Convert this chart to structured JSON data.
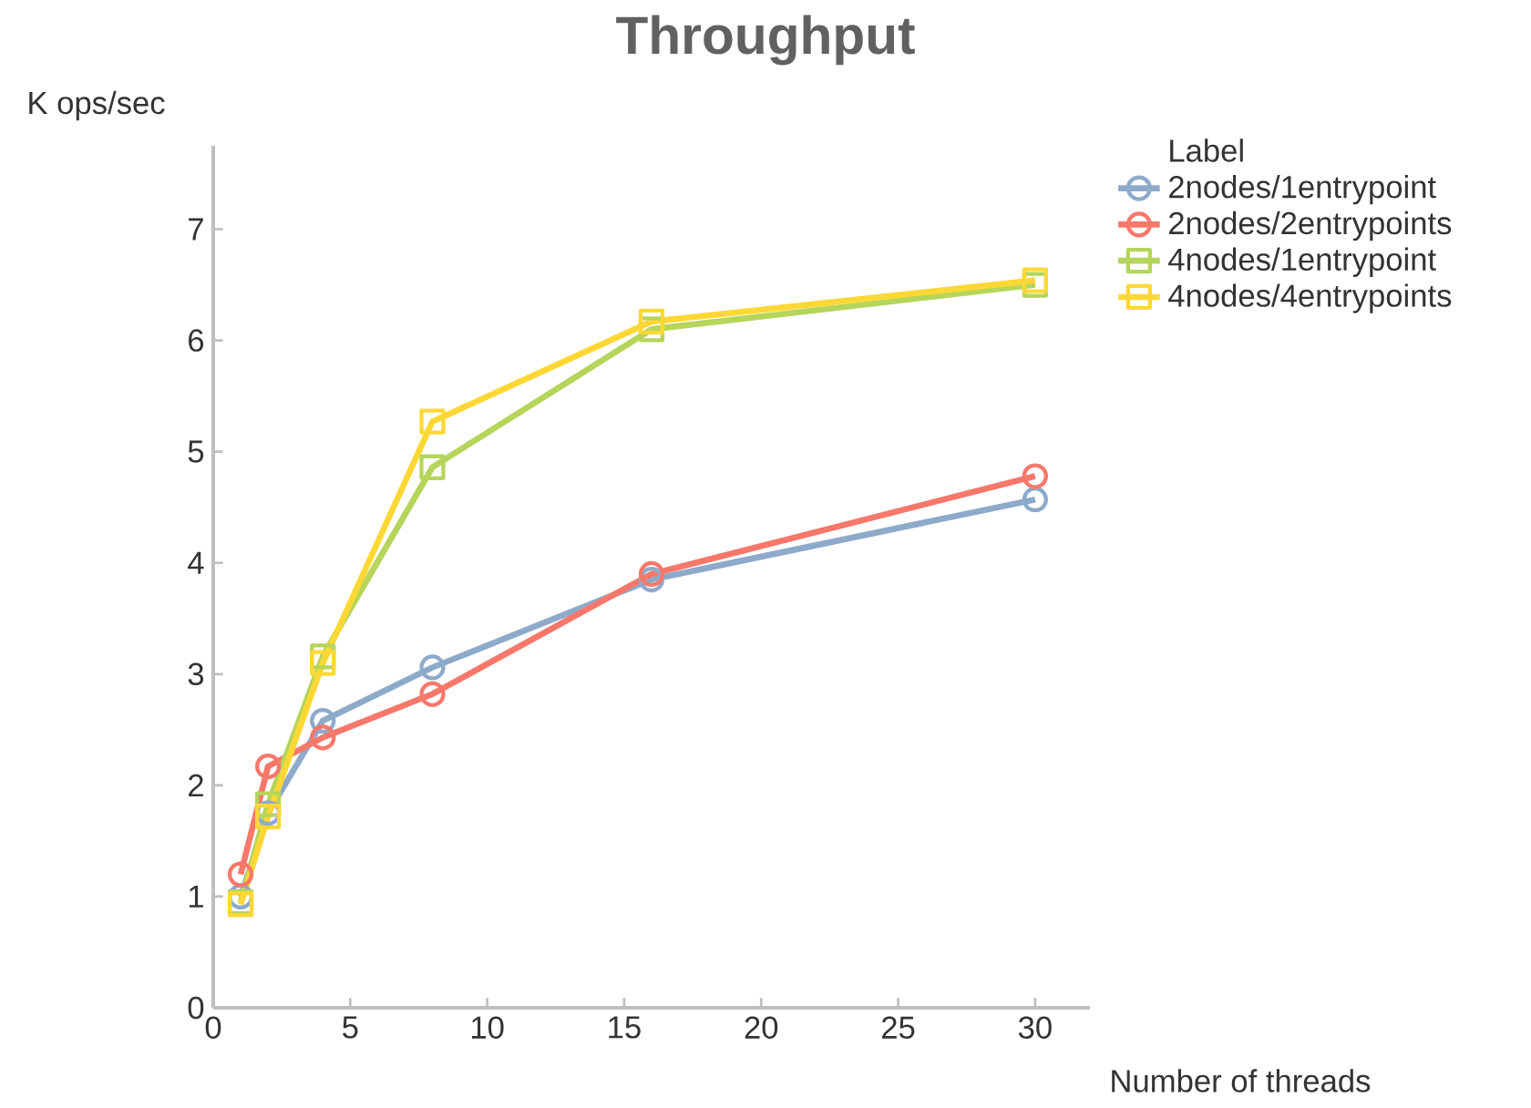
{
  "chart_data": {
    "type": "line",
    "title": "Throughput",
    "xlabel": "Number of threads",
    "ylabel": "K ops/sec",
    "legend_title": "Label",
    "x": [
      1,
      2,
      4,
      8,
      16,
      30
    ],
    "series": [
      {
        "name": "2nodes/1entrypoint",
        "color": "#8eaacb",
        "marker": "circle",
        "values": [
          1.0,
          1.75,
          2.58,
          3.06,
          3.85,
          4.57
        ]
      },
      {
        "name": "2nodes/2entrypoints",
        "color": "#f7786b",
        "marker": "circle",
        "values": [
          1.2,
          2.17,
          2.43,
          2.82,
          3.9,
          4.78
        ]
      },
      {
        "name": "4nodes/1entrypoint",
        "color": "#b5d55b",
        "marker": "square",
        "values": [
          0.95,
          1.83,
          3.16,
          4.86,
          6.1,
          6.5
        ]
      },
      {
        "name": "4nodes/4entrypoints",
        "color": "#fdd835",
        "marker": "square",
        "values": [
          0.93,
          1.72,
          3.1,
          5.27,
          6.17,
          6.54
        ]
      }
    ],
    "xlim": [
      0,
      32
    ],
    "ylim": [
      0,
      7.75
    ],
    "xticks": [
      0,
      5,
      10,
      15,
      20,
      25,
      30
    ],
    "yticks": [
      0,
      1,
      2,
      3,
      4,
      5,
      6,
      7
    ],
    "grid": false,
    "legend": "top right",
    "line_style": "solid"
  }
}
